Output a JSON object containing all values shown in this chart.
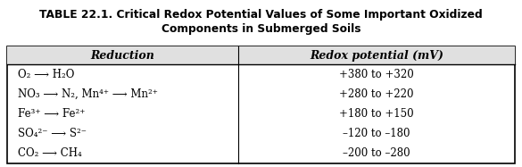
{
  "title_line1": "TABLE 22.1. Critical Redox Potential Values of Some Important Oxidized",
  "title_line2": "Components in Submerged Soils",
  "col_headers": [
    "Reduction",
    "Redox potential (mV)"
  ],
  "rows": [
    [
      "O₂ ⟶ H₂O",
      "+380 to +320"
    ],
    [
      "NO₃ ⟶ N₂, Mn⁴⁺ ⟶ Mn²⁺",
      "+280 to +220"
    ],
    [
      "Fe³⁺ ⟶ Fe²⁺",
      "+180 to +150"
    ],
    [
      "SO₄²⁻ ⟶ S²⁻",
      "–120 to –180"
    ],
    [
      "CO₂ ⟶ CH₄",
      "–200 to –280"
    ]
  ],
  "background_color": "#ffffff",
  "header_bg_color": "#e0e0e0",
  "border_color": "#000000",
  "title_fontsize": 8.8,
  "header_fontsize": 9.0,
  "cell_fontsize": 8.5,
  "fig_width": 5.85,
  "fig_height": 1.87,
  "dpi": 100
}
